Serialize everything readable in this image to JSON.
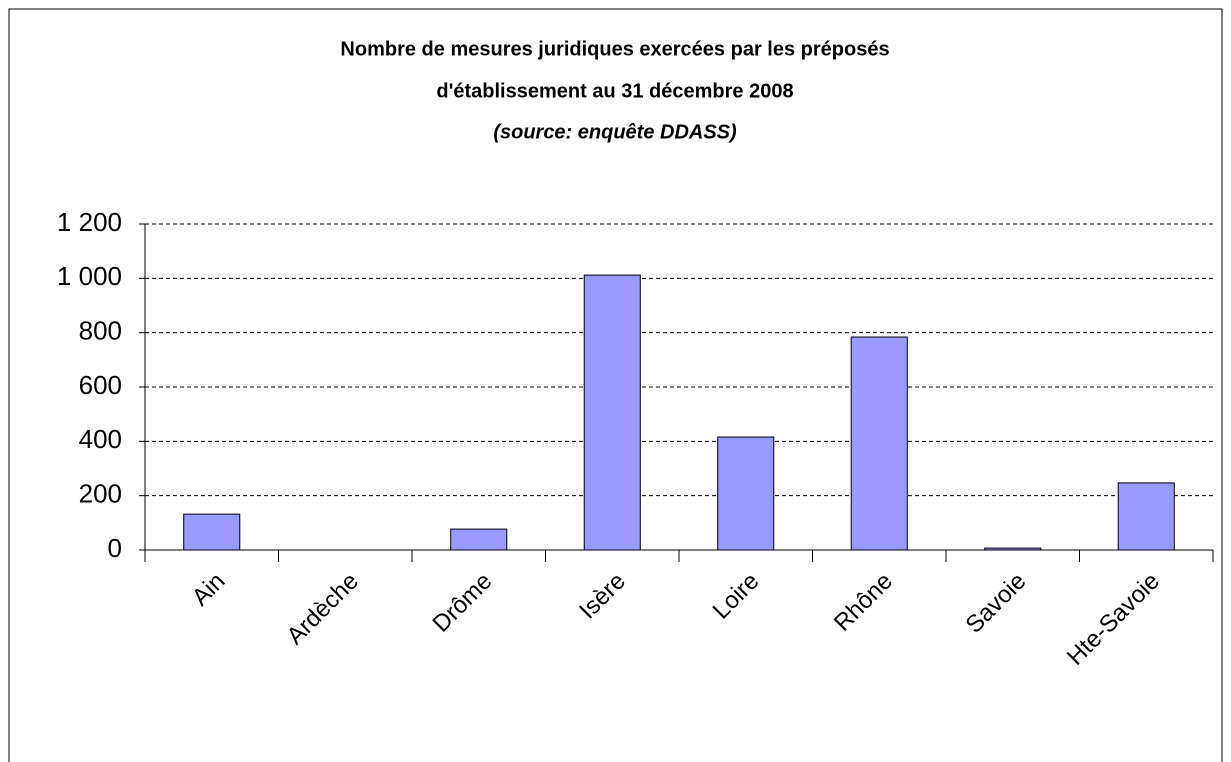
{
  "chart_data": {
    "type": "bar",
    "title": [
      "Nombre de mesures juridiques exercées par les préposés",
      "d'établissement au 31 décembre 2008"
    ],
    "subtitle": "(source: enquête DDASS)",
    "categories": [
      "Ain",
      "Ardèche",
      "Drôme",
      "Isère",
      "Loire",
      "Rhône",
      "Savoie",
      "Hte-Savoie"
    ],
    "values": [
      132,
      0,
      77,
      1012,
      416,
      784,
      7,
      247
    ],
    "color": "#9999ff",
    "ylim": [
      0,
      1200
    ],
    "yticks": [
      0,
      200,
      400,
      600,
      800,
      {
        "value": 1000,
        "label": "1 000"
      },
      {
        "value": 1200,
        "label": "1 200"
      }
    ],
    "grid": true
  }
}
